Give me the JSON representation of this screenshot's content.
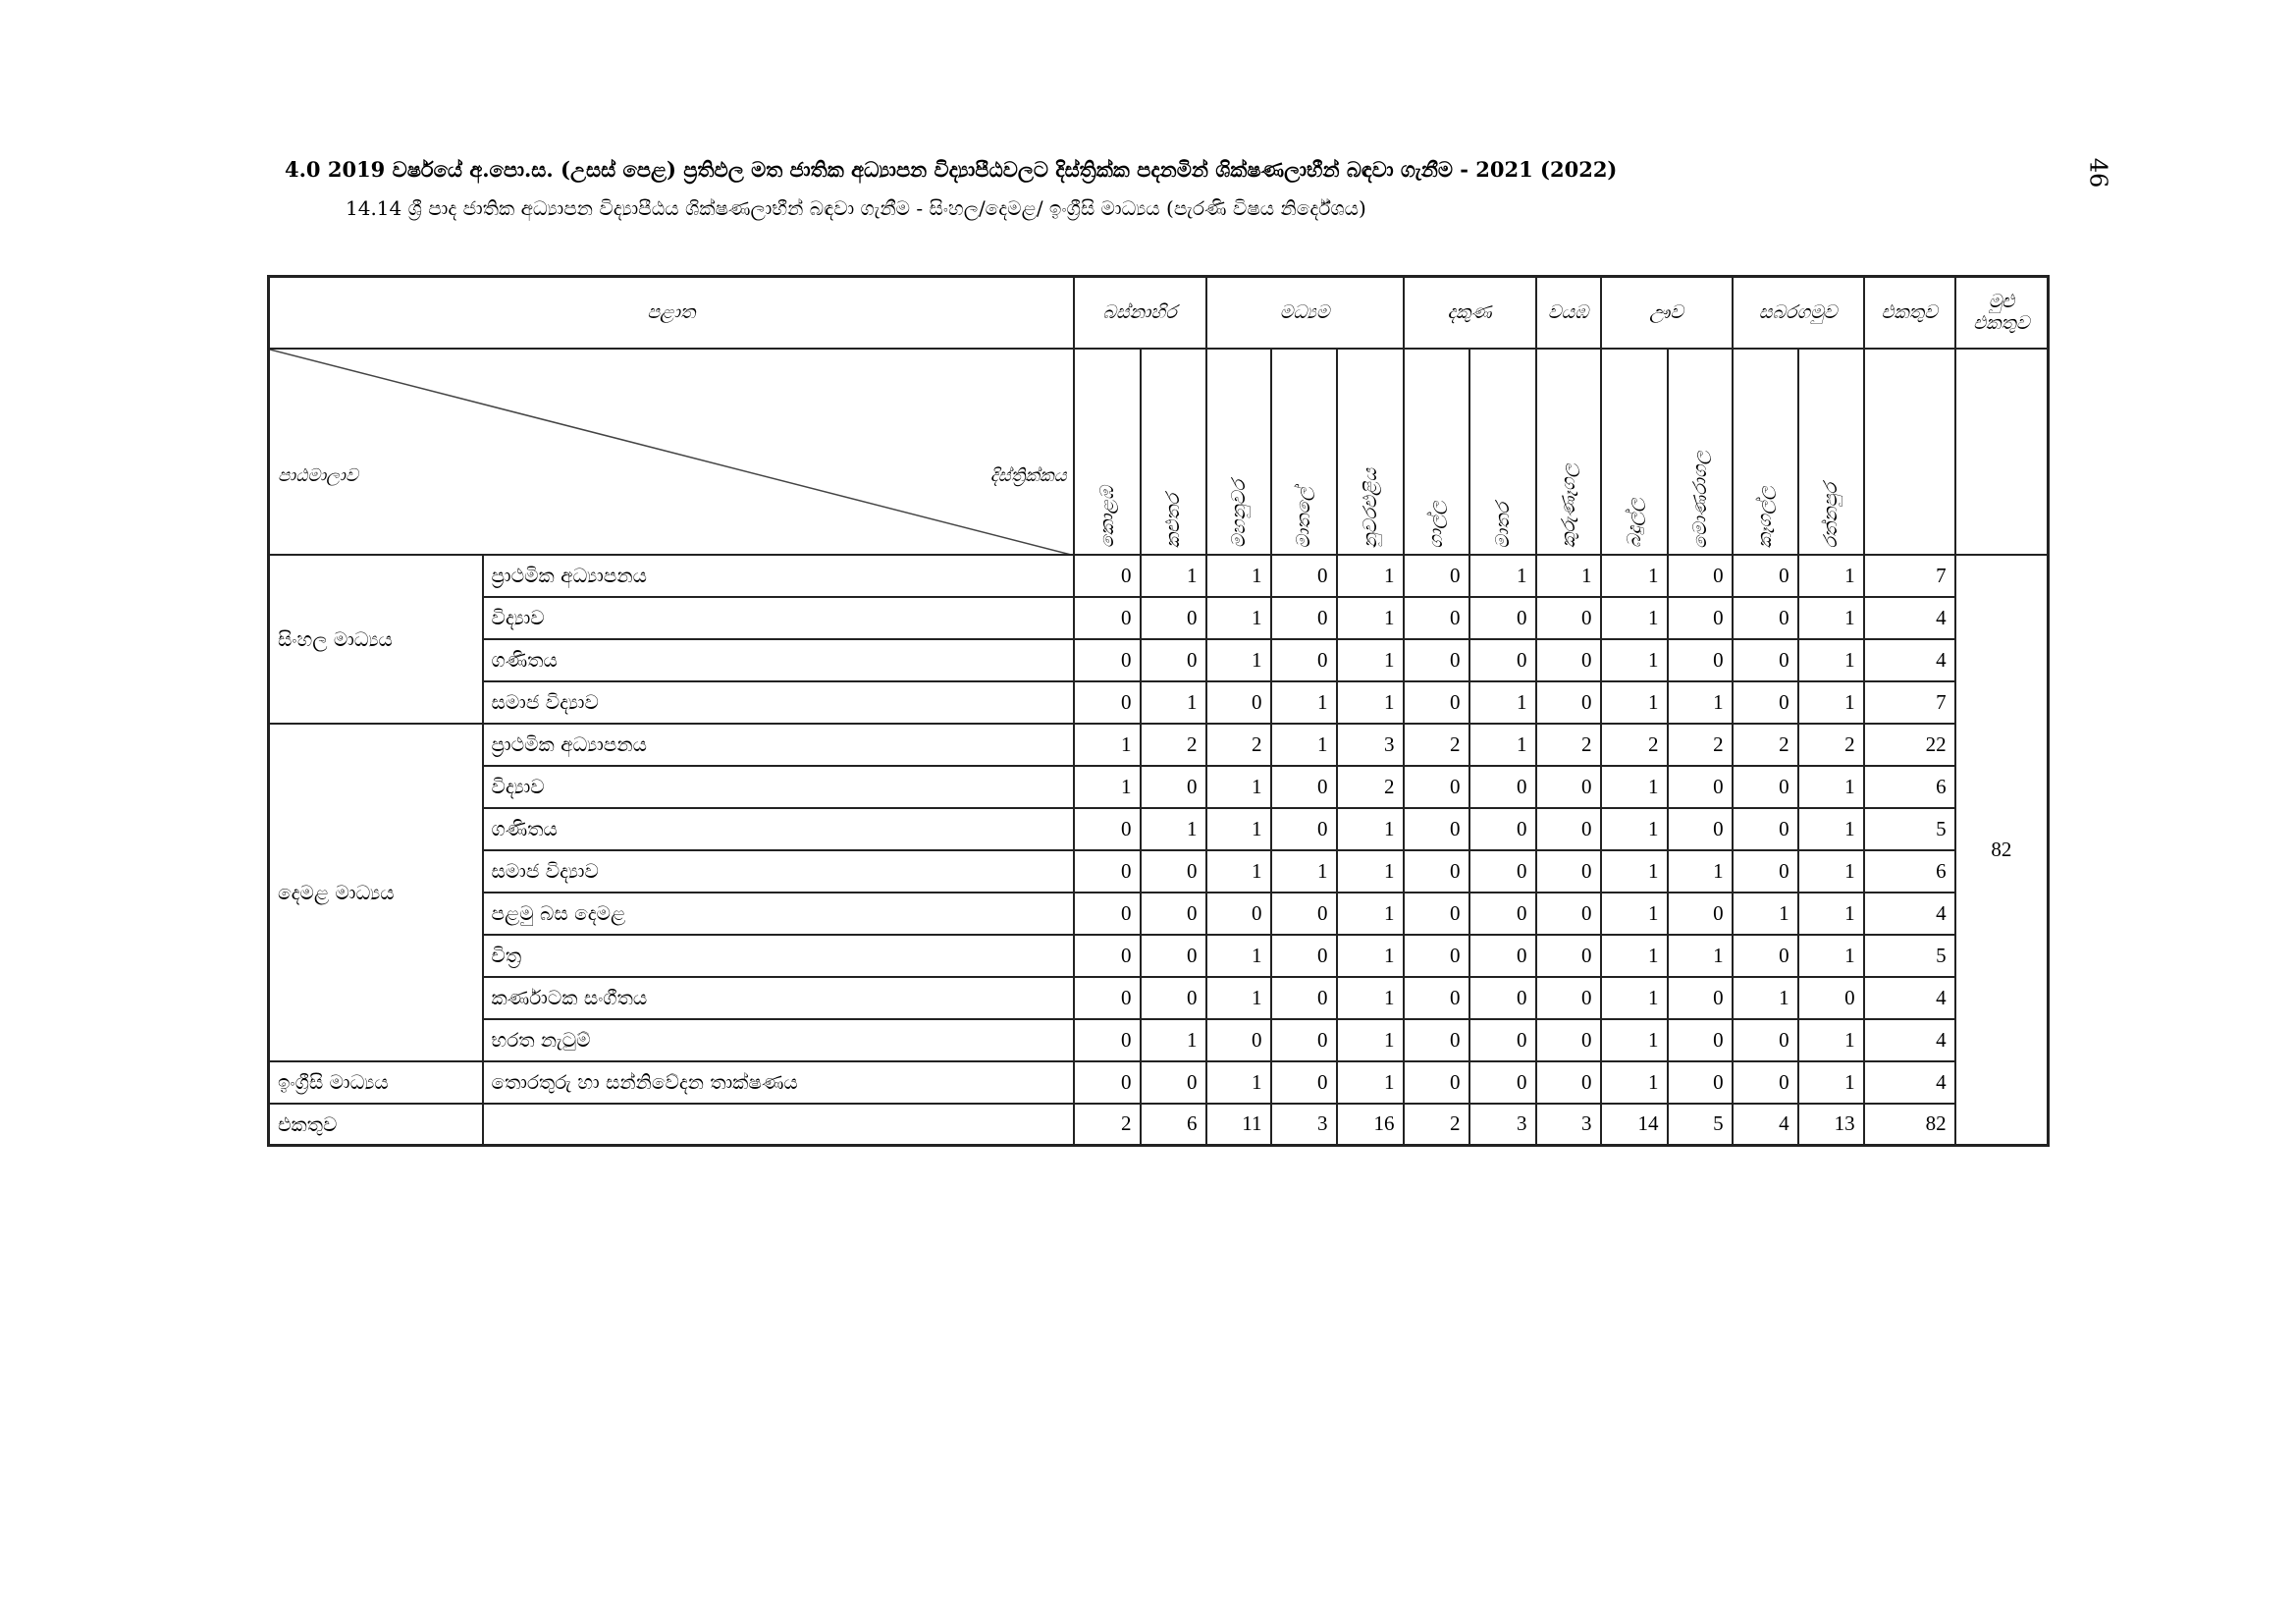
{
  "title": "4.0  2019 වර්ෂයේ අ.පො.ස. (උසස් පෙළ) ප්‍රතිඵල මත ජාතික අධ්‍යාපන විද්‍යාපීඨවලට දිස්ත්‍රික්ක පදනමින් ශික්ෂණලාභීන් බඳවා ගැනීම - 2021 (2022)",
  "subtitle": "14.14 ශ්‍රී පාද ජාතික අධ්‍යාපන විද්‍යාපීඨය ශික්ෂණලාභීන් බඳවා ගැනීම - සිංහල/දෙමළ/ ඉංග්‍රීසි මාධ්‍යය (පැරණි විෂය නිර්දේශය)",
  "page_number": "46",
  "header": {
    "province_label": "පළාත",
    "course_label": "පාඨමාලාව",
    "district_label": "දිස්ත්‍රික්කය",
    "provinces": [
      "බස්නාහිර",
      "මධ්‍යම",
      "දකුණ",
      "වයඹ",
      "ඌව",
      "සබරගමුව"
    ],
    "total": "එකතුව",
    "grand_total": "මුළු එකතුව",
    "districts": [
      "කොළඹ",
      "කළුතර",
      "මහනුවර",
      "මාතලේ",
      "නුවරඑළිය",
      "ගාල්ල",
      "මාතර",
      "කුරුණෑගල",
      "බදුල්ල",
      "මොණරාගල",
      "කෑගල්ල",
      "රත්නපුර"
    ]
  },
  "groups": [
    "සිංහල මාධ්‍යය",
    "දෙමළ මාධ්‍යය",
    "ඉංග්‍රීසි මාධ්‍යය"
  ],
  "rows": [
    {
      "course": "ප්‍රාථමික අධ්‍යාපනය",
      "values": [
        0,
        1,
        1,
        0,
        1,
        0,
        1,
        1,
        1,
        0,
        0,
        1
      ],
      "total": 7
    },
    {
      "course": "විද්‍යාව",
      "values": [
        0,
        0,
        1,
        0,
        1,
        0,
        0,
        0,
        1,
        0,
        0,
        1
      ],
      "total": 4
    },
    {
      "course": "ගණිතය",
      "values": [
        0,
        0,
        1,
        0,
        1,
        0,
        0,
        0,
        1,
        0,
        0,
        1
      ],
      "total": 4
    },
    {
      "course": "සමාජ විද්‍යාව",
      "values": [
        0,
        1,
        0,
        1,
        1,
        0,
        1,
        0,
        1,
        1,
        0,
        1
      ],
      "total": 7
    },
    {
      "course": "ප්‍රාථමික අධ්‍යාපනය",
      "values": [
        1,
        2,
        2,
        1,
        3,
        2,
        1,
        2,
        2,
        2,
        2,
        2
      ],
      "total": 22
    },
    {
      "course": "විද්‍යාව",
      "values": [
        1,
        0,
        1,
        0,
        2,
        0,
        0,
        0,
        1,
        0,
        0,
        1
      ],
      "total": 6
    },
    {
      "course": "ගණිතය",
      "values": [
        0,
        1,
        1,
        0,
        1,
        0,
        0,
        0,
        1,
        0,
        0,
        1
      ],
      "total": 5
    },
    {
      "course": "සමාජ විද්‍යාව",
      "values": [
        0,
        0,
        1,
        1,
        1,
        0,
        0,
        0,
        1,
        1,
        0,
        1
      ],
      "total": 6
    },
    {
      "course": "පළමු බස දෙමළ",
      "values": [
        0,
        0,
        0,
        0,
        1,
        0,
        0,
        0,
        1,
        0,
        1,
        1
      ],
      "total": 4
    },
    {
      "course": "චිත්‍ර",
      "values": [
        0,
        0,
        1,
        0,
        1,
        0,
        0,
        0,
        1,
        1,
        0,
        1
      ],
      "total": 5
    },
    {
      "course": "කර්ණාටක සංගීතය",
      "values": [
        0,
        0,
        1,
        0,
        1,
        0,
        0,
        0,
        1,
        0,
        1,
        0
      ],
      "total": 4
    },
    {
      "course": "භරත නැටුම්",
      "values": [
        0,
        1,
        0,
        0,
        1,
        0,
        0,
        0,
        1,
        0,
        0,
        1
      ],
      "total": 4
    },
    {
      "course": "තොරතුරු හා සන්නිවේදන තාක්ෂණය",
      "values": [
        0,
        0,
        1,
        0,
        1,
        0,
        0,
        0,
        1,
        0,
        0,
        1
      ],
      "total": 4
    }
  ],
  "totals_row": {
    "label": "එකතුව",
    "values": [
      2,
      6,
      11,
      3,
      16,
      2,
      3,
      3,
      14,
      5,
      4,
      13
    ],
    "total": 82
  },
  "grand_total_value": "82"
}
